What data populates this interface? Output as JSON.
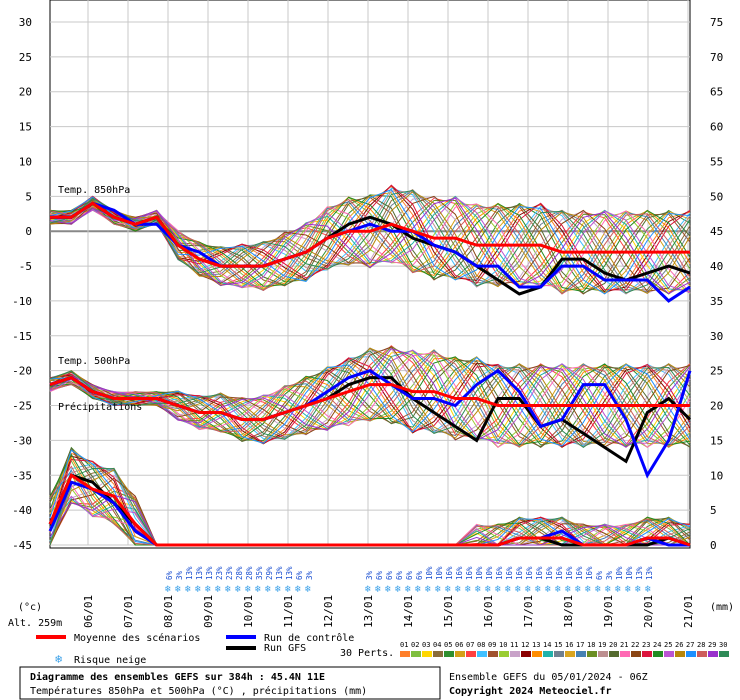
{
  "chart_data": {
    "type": "line",
    "y_left": {
      "ticks": [
        "30",
        "25",
        "20",
        "15",
        "10",
        "5",
        "0",
        "-5",
        "-10",
        "-15",
        "-20",
        "-25",
        "-30",
        "-35",
        "-40",
        "-45"
      ],
      "unit": "(°c)",
      "range": [
        -45,
        30
      ]
    },
    "y_right": {
      "ticks": [
        "75",
        "70",
        "65",
        "60",
        "55",
        "50",
        "45",
        "40",
        "35",
        "30",
        "25",
        "20",
        "15",
        "10",
        "5",
        "0"
      ],
      "unit": "(mm)",
      "range": [
        0,
        75
      ]
    },
    "x_ticks": [
      "06/01",
      "07/01",
      "08/01",
      "09/01",
      "10/01",
      "11/01",
      "12/01",
      "13/01",
      "14/01",
      "15/01",
      "16/01",
      "17/01",
      "18/01",
      "19/01",
      "20/01",
      "21/01"
    ],
    "altitude": "Alt. 259m",
    "panel_labels": {
      "t850": "Temp. 850hPa",
      "t500": "Temp. 500hPa",
      "precip": "Précipitations"
    },
    "snow_risk_group1": [
      "6%",
      "3%",
      "13%",
      "13%",
      "13%",
      "23%",
      "23%",
      "28%",
      "28%",
      "35%",
      "29%",
      "13%",
      "13%",
      "6%",
      "3%"
    ],
    "snow_risk_group2": [
      "3%",
      "6%",
      "6%",
      "6%",
      "6%",
      "6%",
      "10%",
      "10%",
      "16%",
      "16%",
      "16%",
      "10%",
      "10%",
      "16%",
      "16%",
      "16%",
      "16%",
      "16%",
      "16%",
      "16%",
      "16%",
      "16%",
      "16%",
      "6%",
      "3%",
      "10%",
      "10%",
      "13%",
      "13%"
    ],
    "series": [
      {
        "name": "Moyenne des scénarios",
        "color": "#ff0000",
        "t850": [
          2,
          2,
          4,
          2,
          1,
          2,
          -2,
          -4,
          -5,
          -5,
          -5,
          -4,
          -3,
          -1,
          0,
          0,
          1,
          0,
          -1,
          -1,
          -2,
          -2,
          -2,
          -2,
          -3,
          -3,
          -3,
          -3,
          -3,
          -3,
          -3
        ],
        "t500": [
          -22,
          -21,
          -23,
          -24,
          -24,
          -24,
          -25,
          -26,
          -26,
          -27,
          -27,
          -26,
          -25,
          -24,
          -23,
          -22,
          -22,
          -23,
          -23,
          -24,
          -24,
          -25,
          -25,
          -25,
          -25,
          -25,
          -25,
          -25,
          -25,
          -25,
          -25
        ],
        "precip": [
          3,
          10,
          8,
          7,
          3,
          0,
          0,
          0,
          0,
          0,
          0,
          0,
          0,
          0,
          0,
          0,
          0,
          0,
          0,
          0,
          0,
          0,
          1,
          1,
          1,
          0,
          0,
          0,
          1,
          1,
          0
        ]
      },
      {
        "name": "Run de contrôle",
        "color": "#0000ff",
        "t850": [
          2,
          2,
          4,
          3,
          1,
          1,
          -2,
          -3,
          -5,
          -5,
          -5,
          -4,
          -3,
          -1,
          0,
          1,
          0,
          0,
          -2,
          -3,
          -5,
          -5,
          -8,
          -8,
          -5,
          -5,
          -7,
          -7,
          -7,
          -10,
          -8
        ],
        "t500": [
          -22,
          -21,
          -23,
          -24,
          -24,
          -24,
          -25,
          -26,
          -26,
          -27,
          -27,
          -26,
          -25,
          -23,
          -21,
          -20,
          -22,
          -24,
          -24,
          -25,
          -22,
          -20,
          -23,
          -28,
          -27,
          -22,
          -22,
          -27,
          -35,
          -30,
          -20
        ],
        "precip": [
          2,
          9,
          8,
          6,
          2,
          0,
          0,
          0,
          0,
          0,
          0,
          0,
          0,
          0,
          0,
          0,
          0,
          0,
          0,
          0,
          0,
          0,
          1,
          1,
          2,
          0,
          0,
          0,
          1,
          0,
          0
        ]
      },
      {
        "name": "Run GFS",
        "color": "#000000",
        "t850": [
          2,
          2,
          4,
          2,
          1,
          2,
          -2,
          -4,
          -5,
          -5,
          -5,
          -4,
          -3,
          -1,
          1,
          2,
          1,
          -1,
          -2,
          -3,
          -5,
          -7,
          -9,
          -8,
          -4,
          -4,
          -6,
          -7,
          -6,
          -5,
          -6
        ],
        "t500": [
          -22,
          -21,
          -23,
          -24,
          -24,
          -24,
          -25,
          -26,
          -26,
          -27,
          -27,
          -26,
          -25,
          -24,
          -22,
          -21,
          -21,
          -24,
          -26,
          -28,
          -30,
          -24,
          -24,
          -28,
          -27,
          -29,
          -31,
          -33,
          -26,
          -24,
          -27
        ],
        "precip": [
          3,
          10,
          9,
          6,
          3,
          0,
          0,
          0,
          0,
          0,
          0,
          0,
          0,
          0,
          0,
          0,
          0,
          0,
          0,
          0,
          0,
          0,
          1,
          1,
          0,
          0,
          0,
          0,
          0,
          1,
          0
        ]
      }
    ],
    "perturbations": {
      "label": "30 Perts.",
      "count": 30,
      "colors": [
        "#ff7f2a",
        "#7fbf3f",
        "#ffd700",
        "#8a6d3b",
        "#2f8f2f",
        "#d4a017",
        "#ff4040",
        "#40c0ff",
        "#a0522d",
        "#9acd32",
        "#c8a2c8",
        "#8b0000",
        "#ff8c00",
        "#20b2aa",
        "#708090",
        "#daa520",
        "#4682b4",
        "#6b8e23",
        "#bc8f8f",
        "#556b2f",
        "#ff69b4",
        "#8b4513",
        "#dc143c",
        "#228b22",
        "#ba55d3",
        "#b8860b",
        "#1e90ff",
        "#cd5c5c",
        "#9932cc",
        "#2e8b57"
      ],
      "numbers": [
        "01",
        "02",
        "03",
        "04",
        "05",
        "06",
        "07",
        "08",
        "09",
        "10",
        "11",
        "12",
        "13",
        "14",
        "15",
        "16",
        "17",
        "18",
        "19",
        "20",
        "21",
        "22",
        "23",
        "24",
        "25",
        "26",
        "27",
        "28",
        "29",
        "30"
      ]
    }
  },
  "legend": {
    "mean": "Moyenne des scénarios",
    "control": "Run de contrôle",
    "gfs": "Run GFS",
    "snow": "Risque neige"
  },
  "footer": {
    "title": "Diagramme des ensembles GEFS sur 384h : 45.4N 11E",
    "subtitle": "Températures 850hPa et 500hPa (°C) , précipitations (mm)",
    "run": "Ensemble GEFS du 05/01/2024 - 06Z",
    "copyright": "Copyright 2024 Meteociel.fr"
  }
}
